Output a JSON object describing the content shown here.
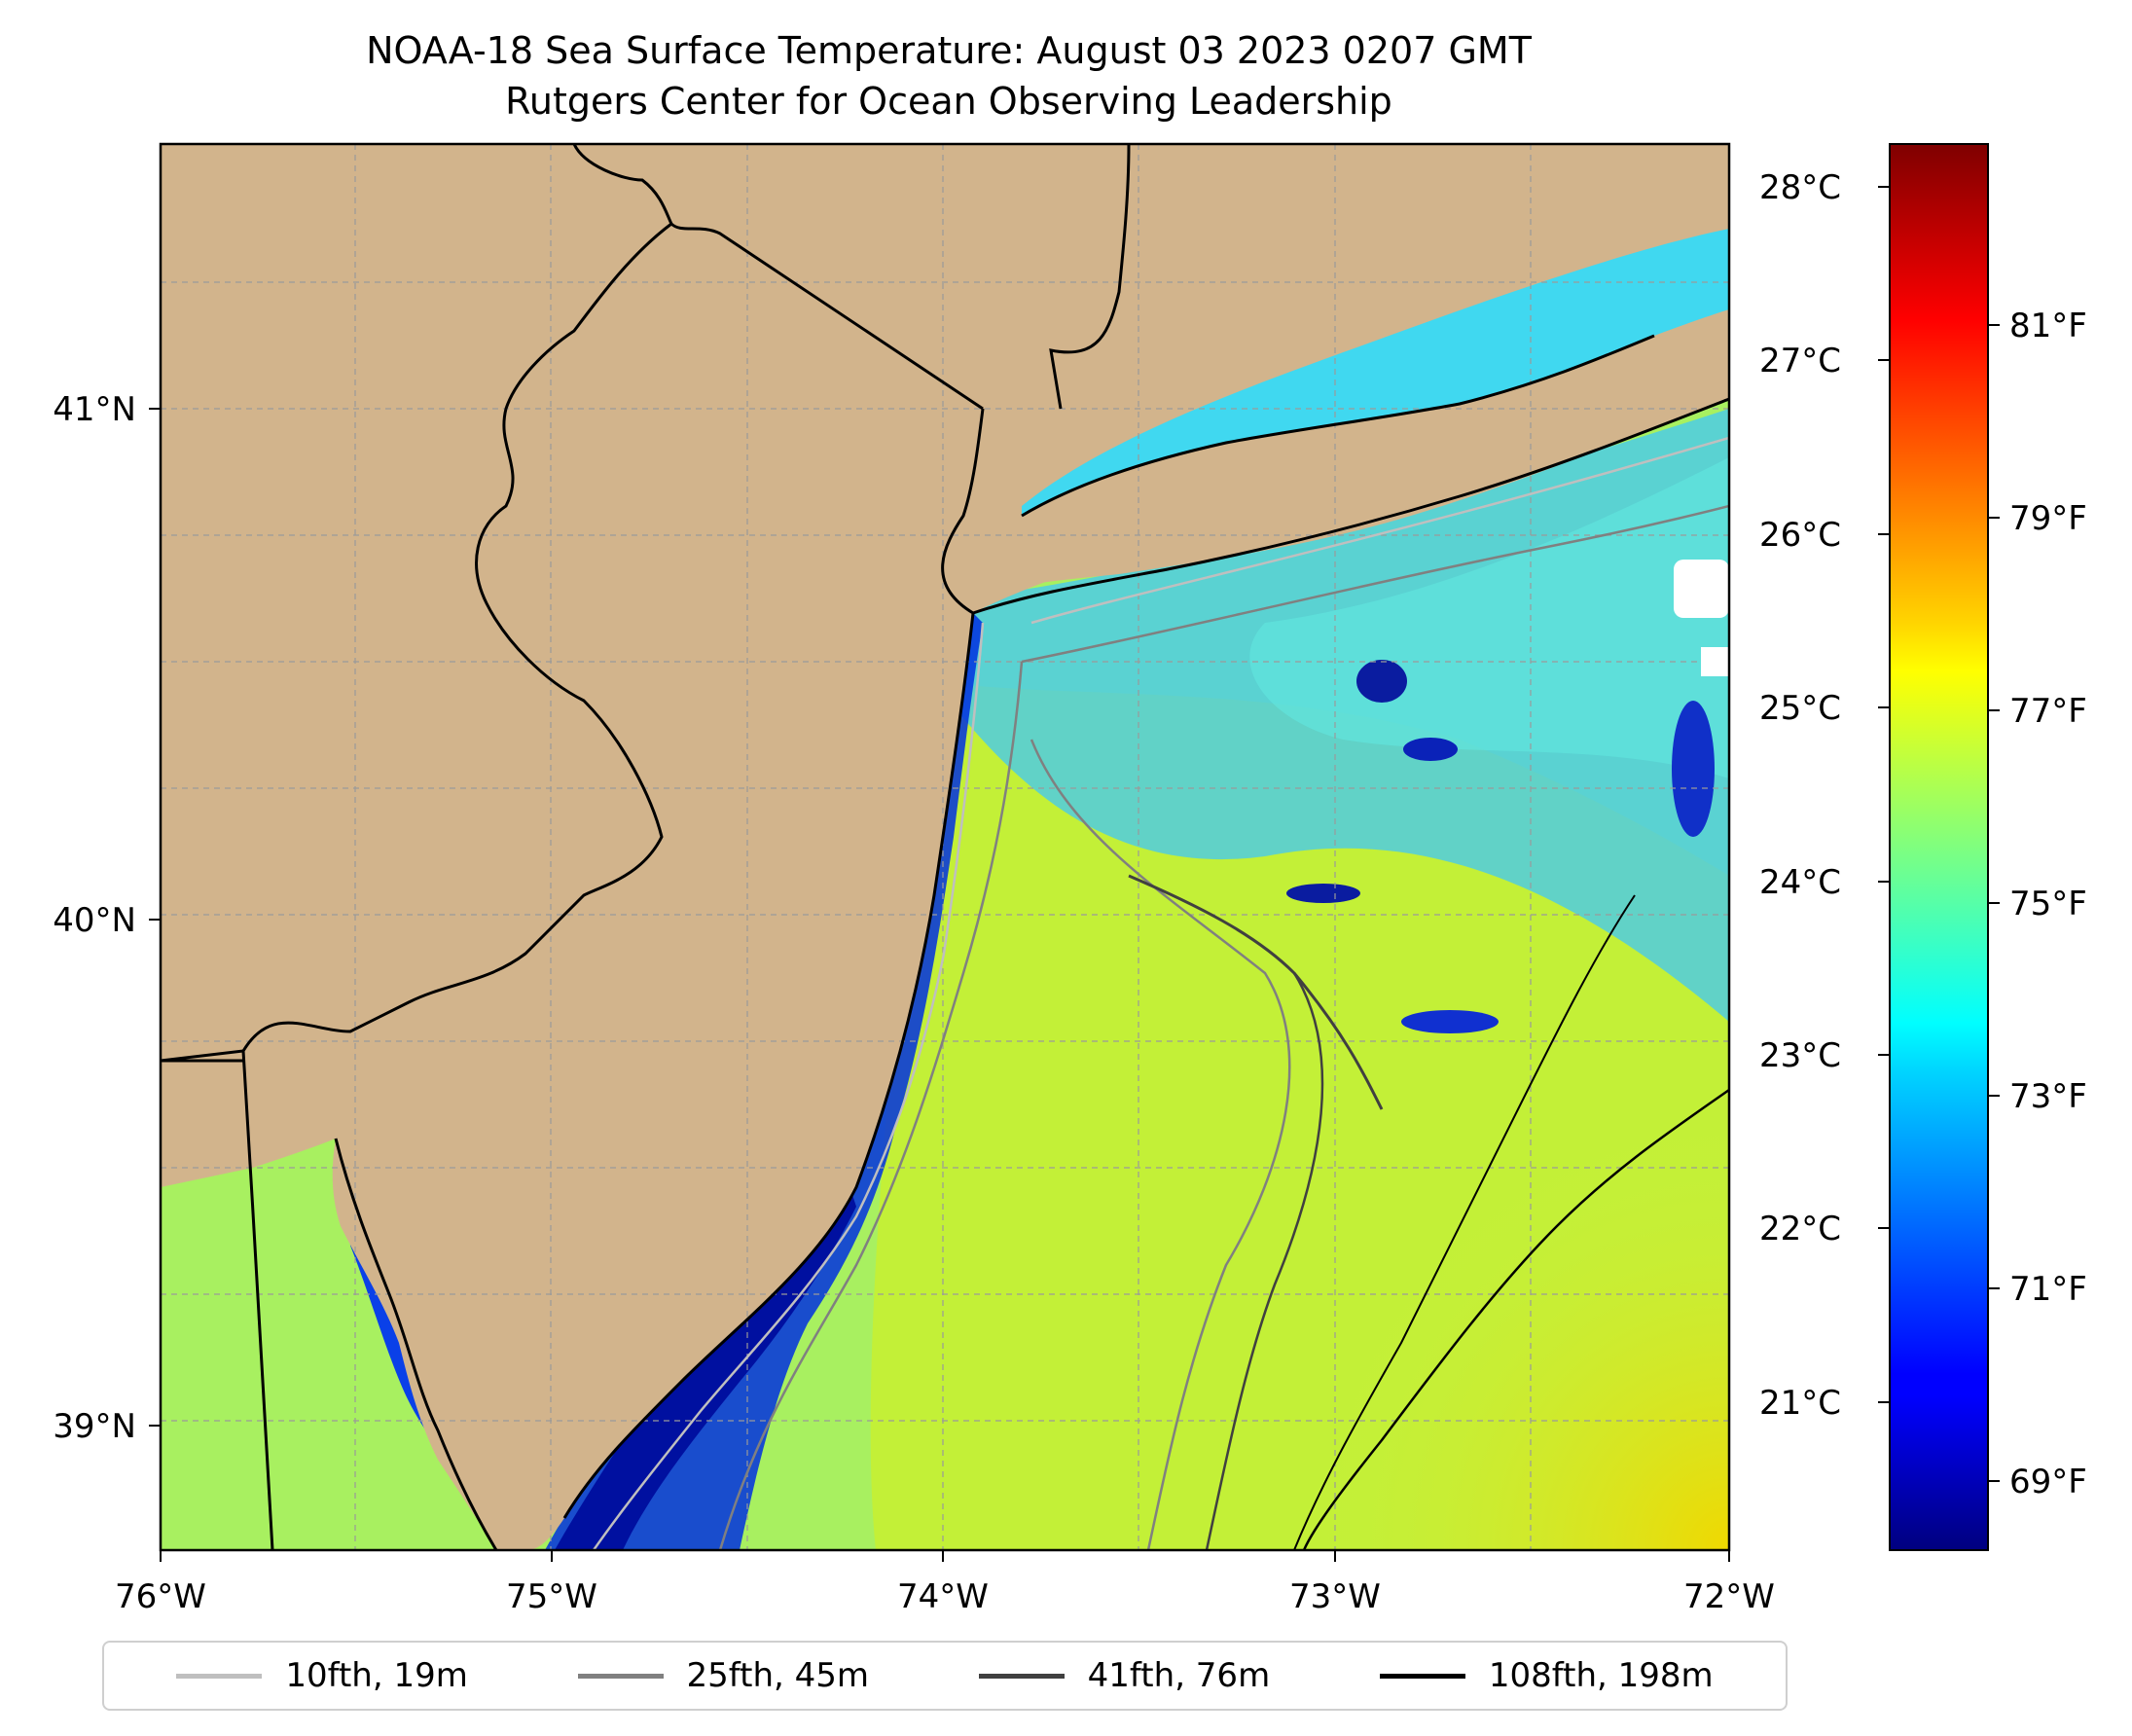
{
  "title": {
    "line1": "NOAA-18 Sea Surface Temperature: August 03 2023 0207 GMT",
    "line2": "Rutgers Center for Ocean Observing Leadership"
  },
  "map": {
    "lon_range": [
      -76,
      -72
    ],
    "lat_range": [
      38.75,
      41.55
    ],
    "x_ticks": [
      "76°W",
      "75°W",
      "74°W",
      "73°W",
      "72°W"
    ],
    "y_ticks": [
      "41°N",
      "40°N",
      "39°N"
    ],
    "gridlines": true,
    "land_color": "#D2B48C",
    "state_borders_color": "#000000"
  },
  "colorbar": {
    "colormap": "jet",
    "celsius_ticks": [
      "28°C",
      "27°C",
      "26°C",
      "25°C",
      "24°C",
      "23°C",
      "22°C",
      "21°C"
    ],
    "fahrenheit_ticks": [
      "81°F",
      "79°F",
      "77°F",
      "75°F",
      "73°F",
      "71°F",
      "69°F"
    ],
    "range_f": [
      68.2,
      82.8
    ]
  },
  "legend": {
    "items": [
      {
        "label": "10fth, 19m",
        "color": "#bfbfbf"
      },
      {
        "label": "25fth, 45m",
        "color": "#808080"
      },
      {
        "label": "41fth, 76m",
        "color": "#404040"
      },
      {
        "label": "108fth, 198m",
        "color": "#000000"
      }
    ]
  }
}
